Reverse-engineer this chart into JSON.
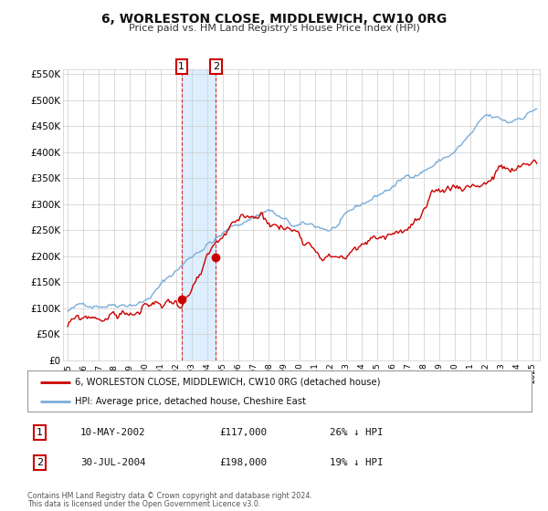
{
  "title": "6, WORLESTON CLOSE, MIDDLEWICH, CW10 0RG",
  "subtitle": "Price paid vs. HM Land Registry's House Price Index (HPI)",
  "ylim": [
    0,
    560000
  ],
  "yticks": [
    0,
    50000,
    100000,
    150000,
    200000,
    250000,
    300000,
    350000,
    400000,
    450000,
    500000,
    550000
  ],
  "ytick_labels": [
    "£0",
    "£50K",
    "£100K",
    "£150K",
    "£200K",
    "£250K",
    "£300K",
    "£350K",
    "£400K",
    "£450K",
    "£500K",
    "£550K"
  ],
  "xlim_start": 1994.7,
  "xlim_end": 2025.5,
  "xticks": [
    1995,
    1996,
    1997,
    1998,
    1999,
    2000,
    2001,
    2002,
    2003,
    2004,
    2005,
    2006,
    2007,
    2008,
    2009,
    2010,
    2011,
    2012,
    2013,
    2014,
    2015,
    2016,
    2017,
    2018,
    2019,
    2020,
    2021,
    2022,
    2023,
    2024,
    2025
  ],
  "sale1_date": 2002.36,
  "sale1_price": 117000,
  "sale2_date": 2004.58,
  "sale2_price": 198000,
  "sale1_date_str": "10-MAY-2002",
  "sale1_price_str": "£117,000",
  "sale1_pct": "26% ↓ HPI",
  "sale2_date_str": "30-JUL-2004",
  "sale2_price_str": "£198,000",
  "sale2_pct": "19% ↓ HPI",
  "shade_color": "#ddeeff",
  "red_color": "#cc0000",
  "blue_color": "#7aadda",
  "grid_color": "#cccccc",
  "legend_line1": "6, WORLESTON CLOSE, MIDDLEWICH, CW10 0RG (detached house)",
  "legend_line2": "HPI: Average price, detached house, Cheshire East",
  "footer1": "Contains HM Land Registry data © Crown copyright and database right 2024.",
  "footer2": "This data is licensed under the Open Government Licence v3.0."
}
